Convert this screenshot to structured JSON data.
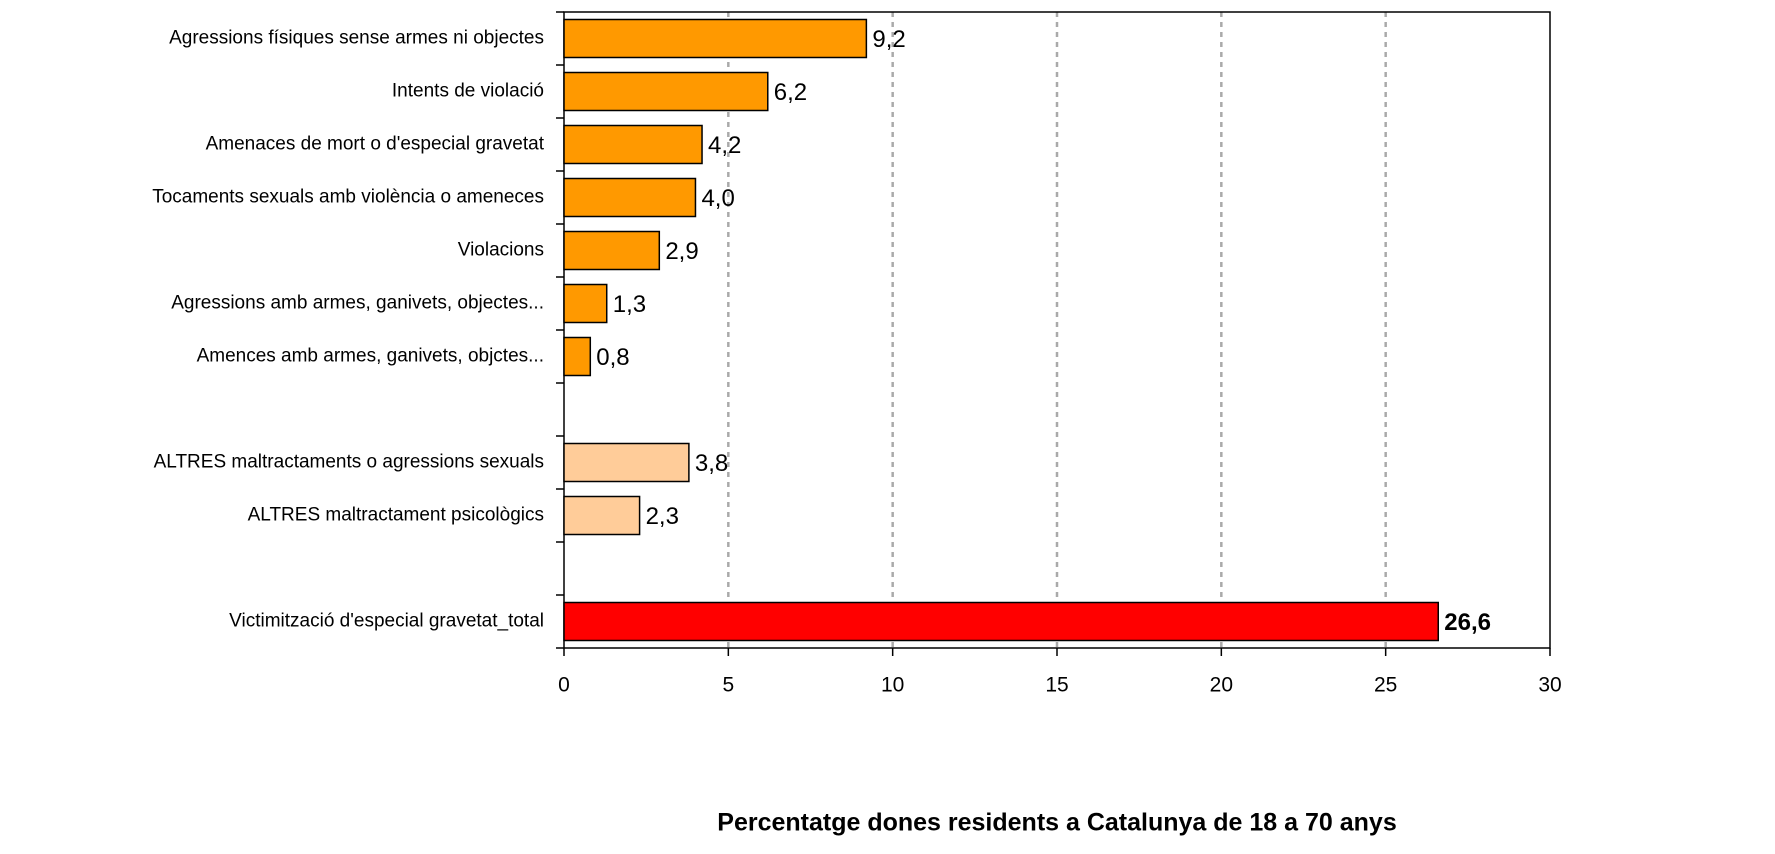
{
  "chart_data": {
    "type": "barh",
    "categories": [
      "Agressions físiques sense armes ni objectes",
      "Intents de violació",
      "Amenaces de mort  o d'especial gravetat",
      "Tocaments sexuals amb violència o ameneces",
      "Violacions",
      "Agressions amb armes, ganivets, objectes...",
      "Amences amb armes, ganivets, objctes...",
      null,
      "ALTRES maltractaments o agressions sexuals",
      "ALTRES maltractament psicològics",
      null,
      "Victimització d'especial gravetat_total"
    ],
    "values": [
      9.2,
      6.2,
      4.2,
      4.0,
      2.9,
      1.3,
      0.8,
      null,
      3.8,
      2.3,
      null,
      26.6
    ],
    "value_labels": [
      "9,2",
      "6,2",
      "4,2",
      "4,0",
      "2,9",
      "1,3",
      "0,8",
      null,
      "3,8",
      "2,3",
      null,
      "26,6"
    ],
    "colors": [
      "#ff9900",
      "#ff9900",
      "#ff9900",
      "#ff9900",
      "#ff9900",
      "#ff9900",
      "#ff9900",
      null,
      "#ffcc99",
      "#ffcc99",
      null,
      "#ff0000"
    ],
    "xlabel": "Percentatge dones residents a Catalunya de 18 a 70 anys",
    "xlim": [
      0,
      30
    ],
    "xticks": [
      0,
      5,
      10,
      15,
      20,
      25,
      30
    ],
    "grid": true
  }
}
